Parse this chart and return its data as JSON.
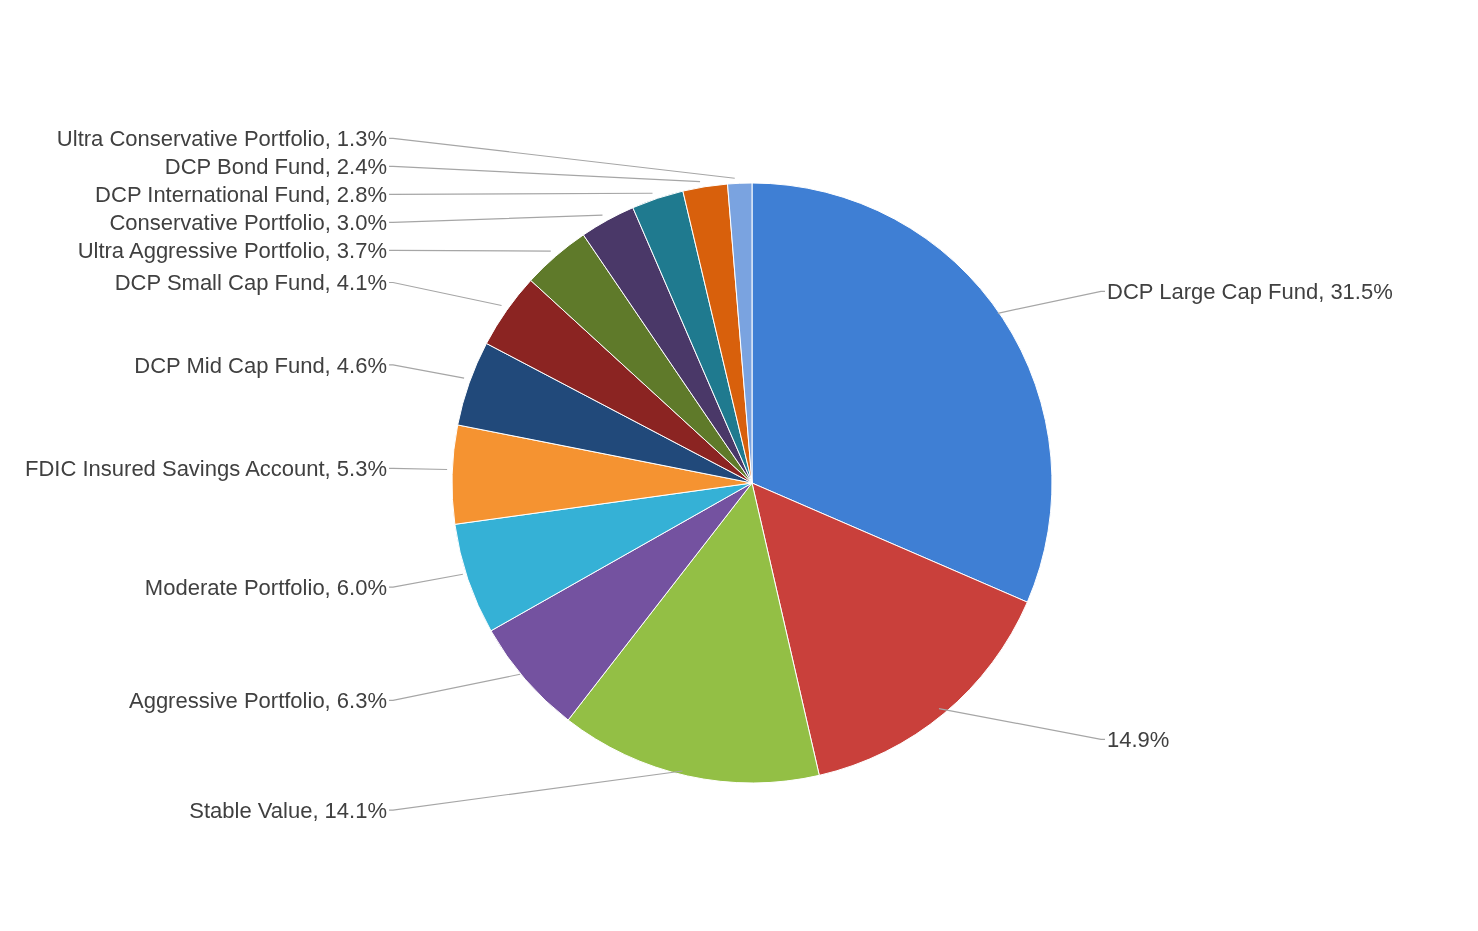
{
  "chart_data": {
    "type": "pie",
    "categories": [
      "DCP Large Cap Fund",
      null,
      "Stable Value",
      "Aggressive Portfolio",
      "Moderate Portfolio",
      "FDIC Insured Savings Account",
      "DCP Mid Cap Fund",
      "DCP Small Cap Fund",
      "Ultra Aggressive Portfolio",
      "Conservative Portfolio",
      "DCP International Fund",
      "DCP Bond Fund",
      "Ultra Conservative Portfolio"
    ],
    "values": [
      31.5,
      14.9,
      14.1,
      6.3,
      6.0,
      5.3,
      4.6,
      4.1,
      3.7,
      3.0,
      2.8,
      2.4,
      1.3
    ],
    "value_labels": [
      "31.5%",
      "14.9%",
      "14.1%",
      "6.3%",
      "6.0%",
      "5.3%",
      "4.6%",
      "4.1%",
      "3.7%",
      "3.0%",
      "2.8%",
      "2.4%",
      "1.3%"
    ],
    "colors": [
      "#3f7fd4",
      "#c9403b",
      "#93bf45",
      "#7452a0",
      "#35b1d6",
      "#f59331",
      "#21497a",
      "#8b2422",
      "#5f7a2a",
      "#4a3868",
      "#1f7a8f",
      "#d8600c",
      "#7aa3e0"
    ],
    "legend": false
  }
}
